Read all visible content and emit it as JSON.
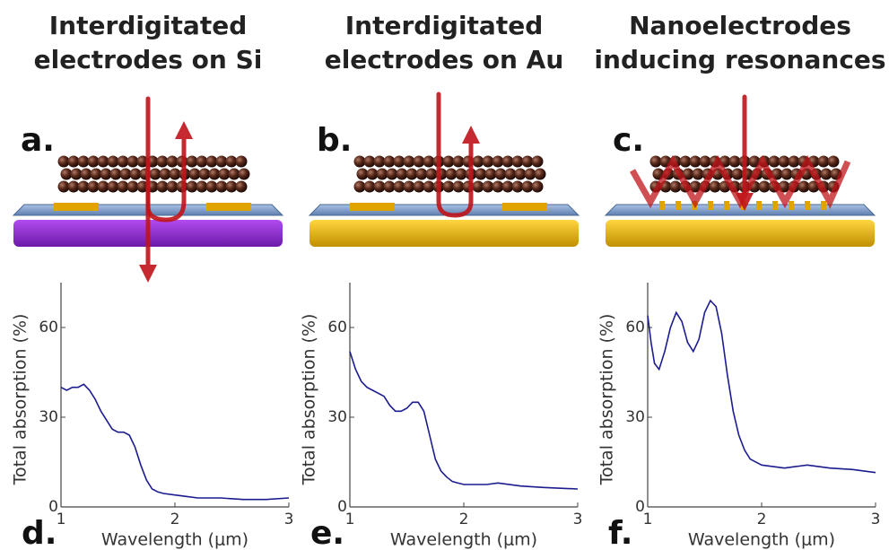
{
  "columns": [
    {
      "title_lines": [
        "Interdigitated",
        "electrodes on Si"
      ],
      "letter": "a."
    },
    {
      "title_lines": [
        "Interdigitated",
        "electrodes on Au"
      ],
      "letter": "b."
    },
    {
      "title_lines": [
        "Nanoelectrodes",
        "inducing resonances"
      ],
      "letter": "c."
    }
  ],
  "chart_data": [
    {
      "type": "line",
      "label": "d.",
      "xlabel": "Wavelength (μm)",
      "ylabel": "Total absorption (%)",
      "color": "#1c1c8f",
      "xlim": [
        1,
        3
      ],
      "ylim": [
        0,
        75
      ],
      "xticks": [
        1,
        2,
        3
      ],
      "yticks": [
        0,
        30,
        60
      ],
      "x": [
        1.0,
        1.05,
        1.1,
        1.15,
        1.2,
        1.25,
        1.3,
        1.35,
        1.4,
        1.45,
        1.5,
        1.55,
        1.6,
        1.65,
        1.7,
        1.75,
        1.8,
        1.85,
        1.9,
        2.0,
        2.1,
        2.2,
        2.4,
        2.6,
        2.8,
        3.0
      ],
      "values": [
        40,
        39,
        40,
        40,
        41,
        39,
        36,
        32,
        29,
        26,
        25,
        25,
        24,
        20,
        14,
        9,
        6,
        5,
        4.5,
        4,
        3.5,
        3,
        3,
        2.5,
        2.5,
        3
      ]
    },
    {
      "type": "line",
      "label": "e.",
      "xlabel": "Wavelength (μm)",
      "ylabel": "Total absorption (%)",
      "color": "#1c1c8f",
      "xlim": [
        1,
        3
      ],
      "ylim": [
        0,
        75
      ],
      "xticks": [
        1,
        2,
        3
      ],
      "yticks": [
        0,
        30,
        60
      ],
      "x": [
        1.0,
        1.05,
        1.1,
        1.15,
        1.2,
        1.3,
        1.35,
        1.4,
        1.45,
        1.5,
        1.55,
        1.6,
        1.65,
        1.7,
        1.75,
        1.8,
        1.85,
        1.9,
        2.0,
        2.2,
        2.3,
        2.5,
        2.7,
        3.0
      ],
      "values": [
        52,
        46,
        42,
        40,
        39,
        37,
        34,
        32,
        32,
        33,
        35,
        35,
        32,
        24,
        16,
        12,
        10,
        8.5,
        7.5,
        7.5,
        8,
        7,
        6.5,
        6
      ]
    },
    {
      "type": "line",
      "label": "f.",
      "xlabel": "Wavelength (μm)",
      "ylabel": "Total absorption (%)",
      "color": "#1c1c8f",
      "xlim": [
        1,
        3
      ],
      "ylim": [
        0,
        75
      ],
      "xticks": [
        1,
        2,
        3
      ],
      "yticks": [
        0,
        30,
        60
      ],
      "x": [
        1.0,
        1.03,
        1.06,
        1.1,
        1.15,
        1.2,
        1.25,
        1.3,
        1.35,
        1.4,
        1.45,
        1.5,
        1.55,
        1.6,
        1.65,
        1.7,
        1.75,
        1.8,
        1.85,
        1.9,
        2.0,
        2.2,
        2.4,
        2.6,
        2.8,
        3.0
      ],
      "values": [
        64,
        55,
        48,
        46,
        52,
        60,
        65,
        62,
        55,
        52,
        56,
        65,
        69,
        67,
        58,
        44,
        32,
        24,
        19,
        16,
        14,
        13,
        14,
        13,
        12.5,
        11.5
      ]
    }
  ]
}
